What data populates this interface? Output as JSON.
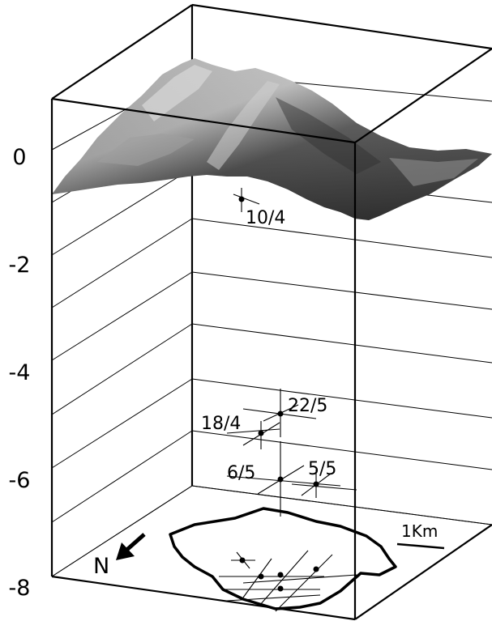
{
  "depth_axis": {
    "ticks": [
      "0",
      "-2",
      "-4",
      "-6",
      "-8"
    ]
  },
  "events": [
    {
      "label": "10/4"
    },
    {
      "label": "22/5"
    },
    {
      "label": "18/4"
    },
    {
      "label": "6/5"
    },
    {
      "label": "5/5"
    }
  ],
  "scale_bar": {
    "label": "1Km"
  },
  "north_arrow": {
    "label": "N",
    "icon": "arrow-icon"
  },
  "colors": {
    "line": "#000000",
    "terrain_dark": "#3a3a3a",
    "terrain_mid": "#6e6e6e",
    "terrain_light": "#b9b9b9"
  }
}
